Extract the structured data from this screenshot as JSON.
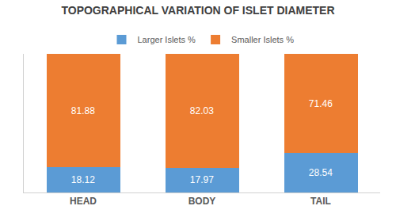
{
  "chart_data": {
    "type": "bar",
    "title": "TOPOGRAPHICAL VARIATION OF ISLET DIAMETER",
    "categories": [
      "HEAD",
      "BODY",
      "TAIL"
    ],
    "series": [
      {
        "name": "Larger Islets %",
        "color": "#5B9BD5",
        "values": [
          18.12,
          17.97,
          28.54
        ]
      },
      {
        "name": "Smaller Islets %",
        "color": "#ED7D31",
        "values": [
          81.88,
          82.03,
          71.46
        ]
      }
    ],
    "ylim": [
      0,
      100
    ],
    "yticks": [],
    "stacked": true,
    "data_labels": true,
    "tick_labels": "x",
    "grid": false,
    "legend": "top"
  }
}
